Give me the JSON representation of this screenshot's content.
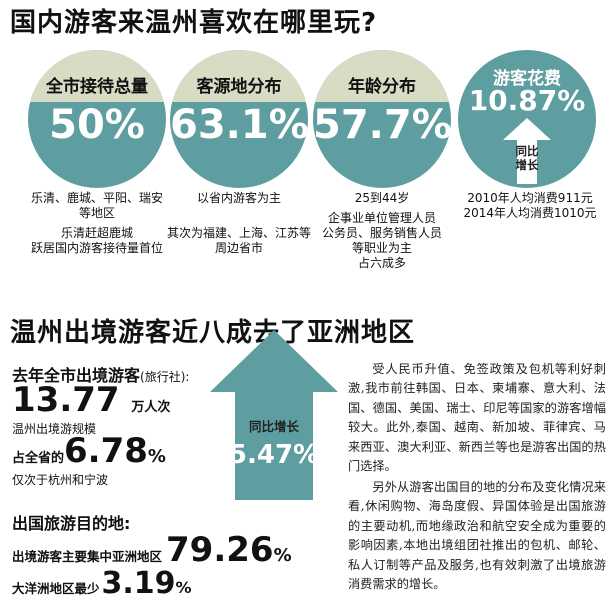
{
  "section1": {
    "title": "国内游客来温州喜欢在哪里玩?",
    "circles": [
      {
        "label": "全市接待总量",
        "value": "50%"
      },
      {
        "label": "客源地分布",
        "value": "63.1%"
      },
      {
        "label": "年龄分布",
        "value": "57.7%"
      },
      {
        "label": "游客花费",
        "value": "10.87%"
      }
    ],
    "growth_label_1": "同比",
    "growth_label_2": "增长",
    "captions": {
      "c1_line1": "乐清、鹿城、平阳、瑞安",
      "c1_line2": "等地区",
      "c1_line3": "乐清赶超鹿城",
      "c1_line4": "跃居国内游客接待量首位",
      "c2_line1": "以省内游客为主",
      "c2_line2": "其次为福建、上海、江苏等",
      "c2_line3": "周边省市",
      "c3_line1": "25到44岁",
      "c3_line2": "企事业单位管理人员",
      "c3_line3": "公务员、服务销售人员",
      "c3_line4": "等职业为主",
      "c3_line5": "占六成多",
      "c4_line1": "2010年人均消费911元",
      "c4_line2": "2014年人均消费1010元"
    }
  },
  "section2": {
    "title": "温州出境游客近八成去了亚洲地区",
    "last_year_label": "去年全市出境游客",
    "agency_note": "(旅行社):",
    "count_value": "13.77",
    "count_unit": "万人次",
    "scale_label": "温州出境游规模",
    "share_prefix": "占全省的",
    "share_value": "6.78",
    "share_pct": "%",
    "share_note": "仅次于杭州和宁波",
    "arrow_label": "同比增长",
    "arrow_value": "5.47%",
    "dest_title": "出国旅游目的地:",
    "asia_label": "出境游客主要集中亚洲地区",
    "asia_value": "79.26",
    "asia_pct": "%",
    "oceania_label": "大洋洲地区最少",
    "oceania_value": "3.19",
    "oceania_pct": "%",
    "paragraph1": "受人民币升值、免签政策及包机等利好刺激,我市前往韩国、日本、柬埔寨、意大利、法国、德国、美国、瑞士、印尼等国家的游客增幅较大。此外,泰国、越南、新加坡、菲律宾、马来西亚、澳大利亚、新西兰等也是游客出国的热门选择。",
    "paragraph2": "另外从游客出国目的地的分布及变化情况来看,休闲购物、海岛度假、异国体验是出国旅游的主要动机,而地缘政治和航空安全成为重要的影响因素,本地出境组团社推出的包机、邮轮、私人订制等产品及服务,也有效刺激了出境旅游消费需求的增长。"
  },
  "colors": {
    "teal": "#5f9ea0",
    "beige": "#d7ddc4",
    "arrow": "#5f9ea0"
  }
}
